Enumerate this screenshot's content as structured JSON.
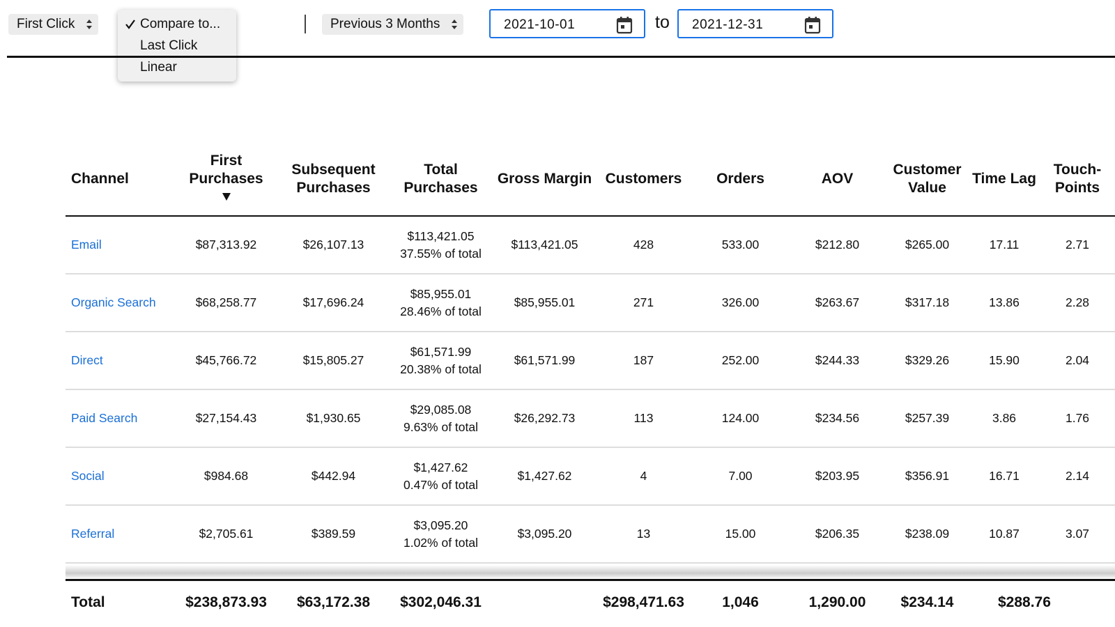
{
  "toolbar": {
    "model_select": "First Click",
    "compare_menu": {
      "options": [
        "Compare to...",
        "Last Click",
        "Linear"
      ],
      "selected": 0
    },
    "range_select": "Previous 3 Months",
    "start_date": "2021-10-01",
    "separator_word": "to",
    "end_date": "2021-12-31"
  },
  "table": {
    "columns": [
      "Channel",
      "First Purchases",
      "Subsequent Purchases",
      "Total Purchases",
      "Gross Margin",
      "Customers",
      "Orders",
      "AOV",
      "Customer Value",
      "Time Lag",
      "Touch-Points"
    ],
    "sort_column": 1,
    "rows": [
      [
        "Email",
        "$87,313.92",
        "$26,107.13",
        "$113,421.05",
        "37.55% of total",
        "$113,421.05",
        "428",
        "533.00",
        "$212.80",
        "$265.00",
        "17.11",
        "2.71"
      ],
      [
        "Organic Search",
        "$68,258.77",
        "$17,696.24",
        "$85,955.01",
        "28.46% of total",
        "$85,955.01",
        "271",
        "326.00",
        "$263.67",
        "$317.18",
        "13.86",
        "2.28"
      ],
      [
        "Direct",
        "$45,766.72",
        "$15,805.27",
        "$61,571.99",
        "20.38% of total",
        "$61,571.99",
        "187",
        "252.00",
        "$244.33",
        "$329.26",
        "15.90",
        "2.04"
      ],
      [
        "Paid Search",
        "$27,154.43",
        "$1,930.65",
        "$29,085.08",
        "9.63% of total",
        "$26,292.73",
        "113",
        "124.00",
        "$234.56",
        "$257.39",
        "3.86",
        "1.76"
      ],
      [
        "Social",
        "$984.68",
        "$442.94",
        "$1,427.62",
        "0.47% of total",
        "$1,427.62",
        "4",
        "7.00",
        "$203.95",
        "$356.91",
        "16.71",
        "2.14"
      ],
      [
        "Referral",
        "$2,705.61",
        "$389.59",
        "$3,095.20",
        "1.02% of total",
        "$3,095.20",
        "13",
        "15.00",
        "$206.35",
        "$238.09",
        "10.87",
        "3.07"
      ]
    ],
    "total": {
      "label": "Total",
      "cells": [
        "$238,873.93",
        "$63,172.38",
        "$302,046.31",
        "$298,471.63",
        "1,046",
        "1,290.00",
        "$234.14",
        "$288.76"
      ]
    }
  }
}
